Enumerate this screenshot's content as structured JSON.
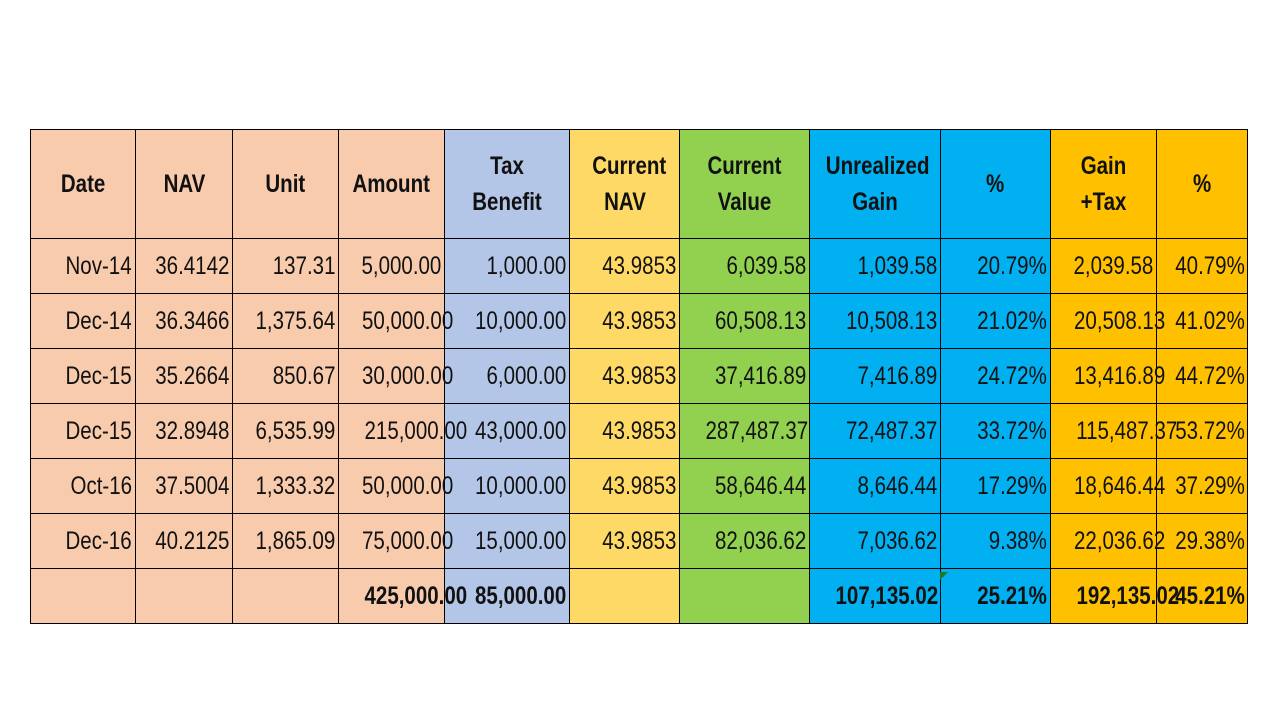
{
  "headers": {
    "date": "Date",
    "nav": "NAV",
    "unit": "Unit",
    "amount": "Amount",
    "tax_benefit": "Tax Benefit",
    "current_nav": "Current NAV",
    "current_value": "Current Value",
    "unrealized_gain": "Unrealized Gain",
    "gain_pct": "%",
    "gain_tax": "Gain +Tax",
    "gain_tax_pct": "%"
  },
  "rows": [
    {
      "date": "Nov-14",
      "nav": "36.4142",
      "unit": "137.31",
      "amount": "5,000.00",
      "tax_benefit": "1,000.00",
      "current_nav": "43.9853",
      "current_value": "6,039.58",
      "unrealized_gain": "1,039.58",
      "gain_pct": "20.79%",
      "gain_tax": "2,039.58",
      "gain_tax_pct": "40.79%"
    },
    {
      "date": "Dec-14",
      "nav": "36.3466",
      "unit": "1,375.64",
      "amount": "50,000.00",
      "tax_benefit": "10,000.00",
      "current_nav": "43.9853",
      "current_value": "60,508.13",
      "unrealized_gain": "10,508.13",
      "gain_pct": "21.02%",
      "gain_tax": "20,508.13",
      "gain_tax_pct": "41.02%"
    },
    {
      "date": "Dec-15",
      "nav": "35.2664",
      "unit": "850.67",
      "amount": "30,000.00",
      "tax_benefit": "6,000.00",
      "current_nav": "43.9853",
      "current_value": "37,416.89",
      "unrealized_gain": "7,416.89",
      "gain_pct": "24.72%",
      "gain_tax": "13,416.89",
      "gain_tax_pct": "44.72%"
    },
    {
      "date": "Dec-15",
      "nav": "32.8948",
      "unit": "6,535.99",
      "amount": "215,000.00",
      "tax_benefit": "43,000.00",
      "current_nav": "43.9853",
      "current_value": "287,487.37",
      "unrealized_gain": "72,487.37",
      "gain_pct": "33.72%",
      "gain_tax": "115,487.37",
      "gain_tax_pct": "53.72%"
    },
    {
      "date": "Oct-16",
      "nav": "37.5004",
      "unit": "1,333.32",
      "amount": "50,000.00",
      "tax_benefit": "10,000.00",
      "current_nav": "43.9853",
      "current_value": "58,646.44",
      "unrealized_gain": "8,646.44",
      "gain_pct": "17.29%",
      "gain_tax": "18,646.44",
      "gain_tax_pct": "37.29%"
    },
    {
      "date": "Dec-16",
      "nav": "40.2125",
      "unit": "1,865.09",
      "amount": "75,000.00",
      "tax_benefit": "15,000.00",
      "current_nav": "43.9853",
      "current_value": "82,036.62",
      "unrealized_gain": "7,036.62",
      "gain_pct": "9.38%",
      "gain_tax": "22,036.62",
      "gain_tax_pct": "29.38%"
    }
  ],
  "totals": {
    "date": "",
    "nav": "",
    "unit": "",
    "amount": "425,000.00",
    "tax_benefit": "85,000.00",
    "current_nav": "",
    "current_value": "",
    "unrealized_gain": "107,135.02",
    "gain_pct": "25.21%",
    "gain_tax": "192,135.02",
    "gain_tax_pct": "45.21%"
  },
  "colors": {
    "investment_columns": "#f8cbad",
    "tax_benefit": "#b4c6e7",
    "current_nav": "#ffd966",
    "current_value": "#92d050",
    "unrealized_gain": "#00b0f0",
    "gain_tax": "#ffc000"
  }
}
